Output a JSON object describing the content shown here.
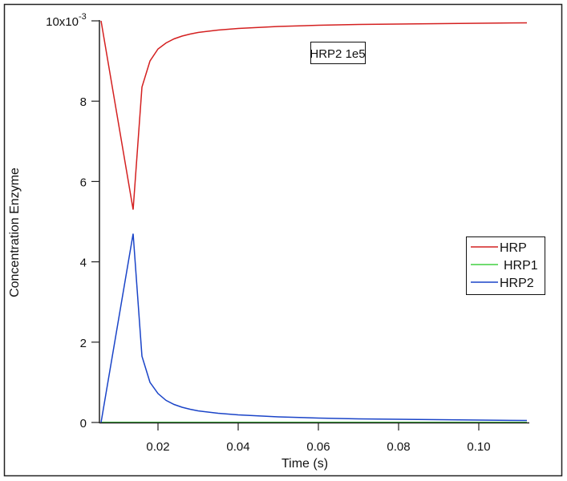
{
  "chart_data": {
    "type": "line",
    "title": "",
    "annotation": "HRP2 1e5",
    "xlabel": "Time (s)",
    "ylabel": "Concentration Enzyme",
    "xlim": [
      0.0054,
      0.1126
    ],
    "ylim": [
      0,
      0.01
    ],
    "x_ticks": [
      0.02,
      0.04,
      0.06,
      0.08,
      0.1
    ],
    "x_tick_labels": [
      "0.02",
      "0.04",
      "0.06",
      "0.08",
      "0.10"
    ],
    "y_ticks": [
      0,
      0.002,
      0.004,
      0.006,
      0.008,
      0.01
    ],
    "y_tick_labels": [
      "0",
      "2",
      "4",
      "6",
      "8",
      "10x10"
    ],
    "y_exponent_label": "-3",
    "grid": false,
    "legend_placement": "right",
    "x": [
      0.0058,
      0.0138,
      0.016,
      0.018,
      0.02,
      0.022,
      0.024,
      0.026,
      0.028,
      0.03,
      0.035,
      0.04,
      0.05,
      0.06,
      0.07,
      0.08,
      0.09,
      0.1,
      0.112
    ],
    "series": [
      {
        "name": "HRP",
        "color": "#d42020",
        "values": [
          0.01,
          0.0053,
          0.00835,
          0.009,
          0.0093,
          0.00945,
          0.00955,
          0.00962,
          0.00967,
          0.00971,
          0.00977,
          0.00981,
          0.00986,
          0.00989,
          0.00991,
          0.00992,
          0.00993,
          0.00994,
          0.00995
        ]
      },
      {
        "name": "HRP1",
        "color": "#40d040",
        "values": [
          0,
          0,
          0,
          0,
          0,
          0,
          0,
          0,
          0,
          0,
          0,
          0,
          0,
          0,
          0,
          0,
          0,
          0,
          0
        ]
      },
      {
        "name": "HRP2",
        "color": "#1a44c8",
        "values": [
          0,
          0.0047,
          0.00165,
          0.001,
          0.00072,
          0.00055,
          0.00045,
          0.00038,
          0.00033,
          0.00029,
          0.00023,
          0.00019,
          0.00014,
          0.00011,
          9e-05,
          8e-05,
          7e-05,
          6e-05,
          5e-05
        ]
      }
    ]
  }
}
